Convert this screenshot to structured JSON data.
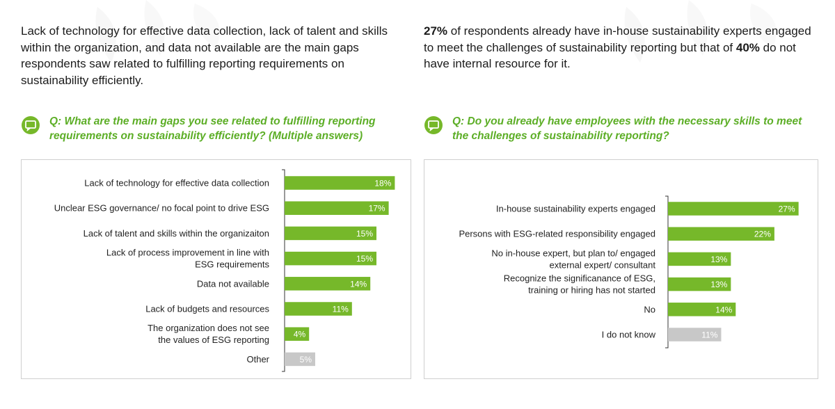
{
  "left": {
    "intro_text": "Lack of technology for effective data collection, lack of talent and skills within the organization, and data not available are the main gaps respondents saw related to fulfilling reporting requirements on sustainability efficiently.",
    "question": "Q: What are the main gaps you see related to fulfilling reporting requirements on sustainability efficiently? (Multiple answers)"
  },
  "right": {
    "intro_parts": [
      {
        "text": "27%",
        "bold": true
      },
      {
        "text": " of respondents already have in-house sustainability experts engaged to meet the challenges of sustainability reporting but that of ",
        "bold": false
      },
      {
        "text": "40%",
        "bold": true
      },
      {
        "text": " do not have internal resource for it.",
        "bold": false
      }
    ],
    "question": "Q: Do you already have employees with the necessary skills to meet the challenges of sustainability reporting?"
  },
  "colors": {
    "accent": "#76b82a",
    "neutral_bar": "#c8c8c8",
    "question_text": "#5cae26"
  },
  "icons": {
    "question": "chat-bubble-icon"
  },
  "chart_data": [
    {
      "type": "bar",
      "orientation": "horizontal",
      "categories": [
        [
          "Lack of technology for effective data collection"
        ],
        [
          "Unclear ESG governance/ no focal point to drive ESG"
        ],
        [
          "Lack of talent and skills within the organizaiton"
        ],
        [
          "Lack of process improvement in line with",
          "ESG requirements"
        ],
        [
          "Data not available"
        ],
        [
          "Lack of budgets and resources"
        ],
        [
          "The organization does not see",
          "the values of ESG reporting"
        ],
        [
          "Other"
        ]
      ],
      "values": [
        18,
        17,
        15,
        15,
        14,
        11,
        4,
        5
      ],
      "value_labels": [
        "18%",
        "17%",
        "15%",
        "15%",
        "14%",
        "11%",
        "4%",
        "5%"
      ],
      "colors": [
        "#76b82a",
        "#76b82a",
        "#76b82a",
        "#76b82a",
        "#76b82a",
        "#76b82a",
        "#76b82a",
        "#c8c8c8"
      ],
      "unit": "%",
      "grid": false,
      "legend": "none"
    },
    {
      "type": "bar",
      "orientation": "horizontal",
      "categories": [
        [
          "In-house sustainability experts engaged"
        ],
        [
          "Persons with ESG-related responsibility engaged"
        ],
        [
          "No in-house expert, but plan to/ engaged",
          "external expert/ consultant"
        ],
        [
          "Recognize the significanance of ESG,",
          "training or hiring has not started"
        ],
        [
          "No"
        ],
        [
          "I do not know"
        ]
      ],
      "values": [
        27,
        22,
        13,
        13,
        14,
        11
      ],
      "value_labels": [
        "27%",
        "22%",
        "13%",
        "13%",
        "14%",
        "11%"
      ],
      "colors": [
        "#76b82a",
        "#76b82a",
        "#76b82a",
        "#76b82a",
        "#76b82a",
        "#c8c8c8"
      ],
      "unit": "%",
      "grid": false,
      "legend": "none"
    }
  ]
}
